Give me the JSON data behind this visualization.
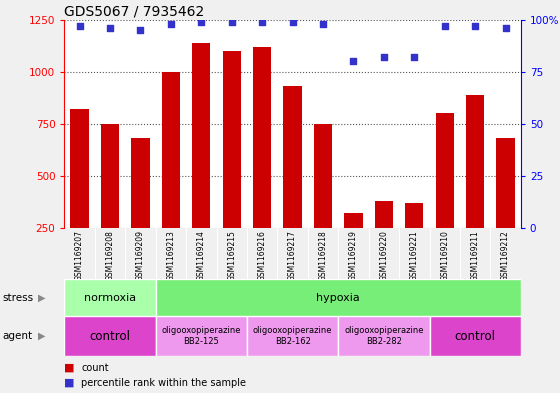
{
  "title": "GDS5067 / 7935462",
  "samples": [
    "GSM1169207",
    "GSM1169208",
    "GSM1169209",
    "GSM1169213",
    "GSM1169214",
    "GSM1169215",
    "GSM1169216",
    "GSM1169217",
    "GSM1169218",
    "GSM1169219",
    "GSM1169220",
    "GSM1169221",
    "GSM1169210",
    "GSM1169211",
    "GSM1169212"
  ],
  "counts": [
    820,
    750,
    680,
    1000,
    1140,
    1100,
    1120,
    930,
    750,
    320,
    380,
    370,
    800,
    890,
    680
  ],
  "percentiles": [
    97,
    96,
    95,
    98,
    99,
    99,
    99,
    99,
    98,
    80,
    82,
    82,
    97,
    97,
    96
  ],
  "bar_color": "#cc0000",
  "dot_color": "#3333cc",
  "ylim_left": [
    250,
    1250
  ],
  "ylim_right": [
    0,
    100
  ],
  "yticks_left": [
    250,
    500,
    750,
    1000,
    1250
  ],
  "yticks_right": [
    0,
    25,
    50,
    75,
    100
  ],
  "stress_groups": [
    {
      "label": "normoxia",
      "start": 0,
      "end": 3,
      "color": "#aaffaa"
    },
    {
      "label": "hypoxia",
      "start": 3,
      "end": 15,
      "color": "#77ee77"
    }
  ],
  "agent_groups": [
    {
      "label": "control",
      "start": 0,
      "end": 3,
      "color": "#dd44cc",
      "text_size": "large"
    },
    {
      "label": "oligooxopiperazine\nBB2-125",
      "start": 3,
      "end": 6,
      "color": "#ee99ee",
      "text_size": "small"
    },
    {
      "label": "oligooxopiperazine\nBB2-162",
      "start": 6,
      "end": 9,
      "color": "#ee99ee",
      "text_size": "small"
    },
    {
      "label": "oligooxopiperazine\nBB2-282",
      "start": 9,
      "end": 12,
      "color": "#ee99ee",
      "text_size": "small"
    },
    {
      "label": "control",
      "start": 12,
      "end": 15,
      "color": "#dd44cc",
      "text_size": "large"
    }
  ],
  "stress_label": "stress",
  "agent_label": "agent",
  "legend_count_color": "#cc0000",
  "legend_dot_color": "#3333cc",
  "fig_bg": "#f0f0f0",
  "plot_bg": "#ffffff",
  "xtick_bg": "#cccccc"
}
